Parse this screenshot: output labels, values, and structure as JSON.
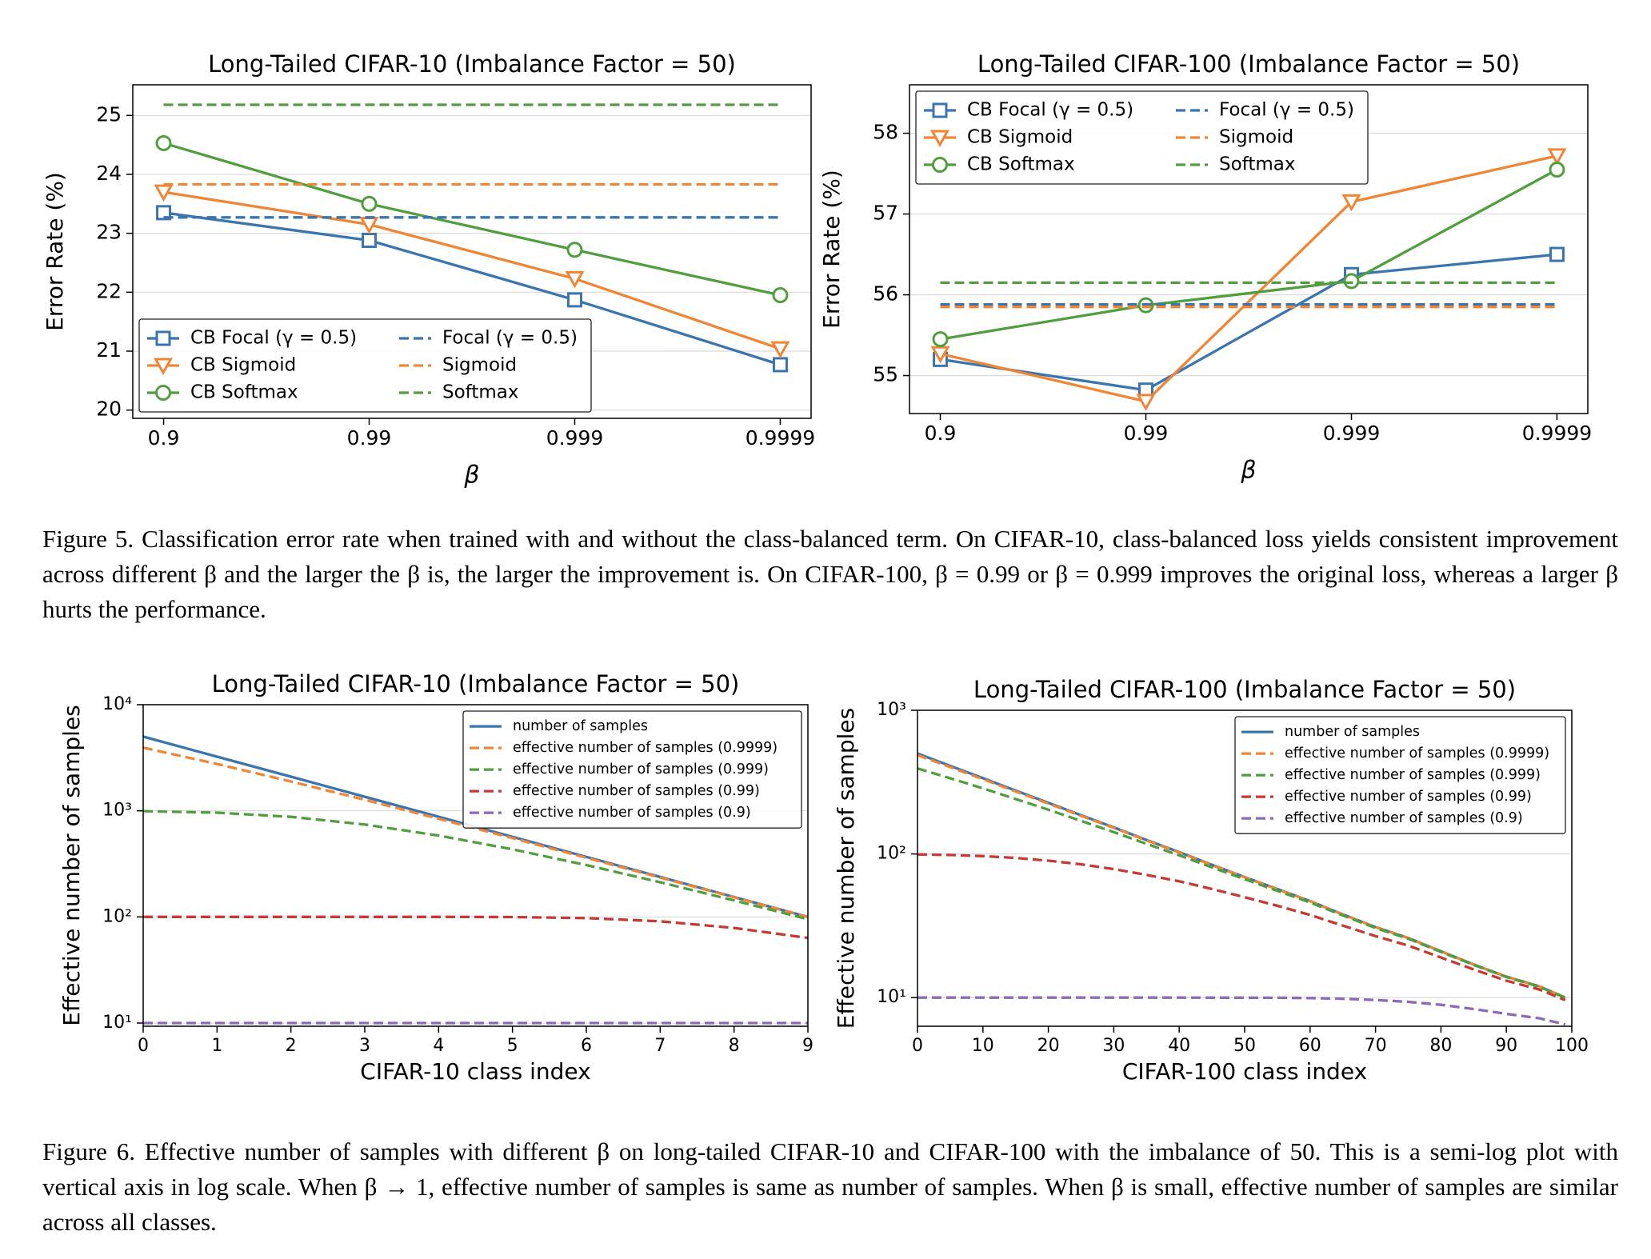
{
  "chart_data": [
    {
      "type": "line",
      "title": "Long-Tailed CIFAR-10 (Imbalance Factor = 50)",
      "xlabel": "β",
      "ylabel": "Error Rate (%)",
      "categories": [
        "0.9",
        "0.99",
        "0.999",
        "0.9999"
      ],
      "ylim": [
        19.86,
        25.52
      ],
      "yticks": [
        20,
        21,
        22,
        23,
        24,
        25
      ],
      "grid": true,
      "legend": "lower left",
      "series": [
        {
          "name": "CB Focal (γ = 0.5)",
          "color": "#3b75af",
          "marker": "square",
          "linestyle": "solid",
          "values": [
            23.35,
            22.88,
            21.87,
            20.77
          ]
        },
        {
          "name": "CB Sigmoid",
          "color": "#ef8636",
          "marker": "triangle-down",
          "linestyle": "solid",
          "values": [
            23.7,
            23.15,
            22.23,
            21.04
          ]
        },
        {
          "name": "CB Softmax",
          "color": "#519e3e",
          "marker": "circle",
          "linestyle": "solid",
          "values": [
            24.53,
            23.5,
            22.72,
            21.95
          ]
        },
        {
          "name": "Focal (γ = 0.5)",
          "color": "#3b75af",
          "linestyle": "dashed",
          "values": [
            23.27,
            23.27,
            23.27,
            23.27
          ]
        },
        {
          "name": "Sigmoid",
          "color": "#ef8636",
          "linestyle": "dashed",
          "values": [
            23.83,
            23.83,
            23.83,
            23.83
          ]
        },
        {
          "name": "Softmax",
          "color": "#519e3e",
          "linestyle": "dashed",
          "values": [
            25.18,
            25.18,
            25.18,
            25.18
          ]
        }
      ]
    },
    {
      "type": "line",
      "title": "Long-Tailed CIFAR-100 (Imbalance Factor = 50)",
      "xlabel": "β",
      "ylabel": "Error Rate (%)",
      "categories": [
        "0.9",
        "0.99",
        "0.999",
        "0.9999"
      ],
      "ylim": [
        54.53,
        58.6
      ],
      "yticks": [
        55,
        56,
        57,
        58
      ],
      "grid": true,
      "legend": "upper left",
      "series": [
        {
          "name": "CB Focal (γ = 0.5)",
          "color": "#3b75af",
          "marker": "square",
          "linestyle": "solid",
          "values": [
            55.2,
            54.82,
            56.25,
            56.5
          ]
        },
        {
          "name": "CB Sigmoid",
          "color": "#ef8636",
          "marker": "triangle-down",
          "linestyle": "solid",
          "values": [
            55.27,
            54.68,
            57.15,
            57.72
          ]
        },
        {
          "name": "CB Softmax",
          "color": "#519e3e",
          "marker": "circle",
          "linestyle": "solid",
          "values": [
            55.45,
            55.87,
            56.17,
            57.55
          ]
        },
        {
          "name": "Focal (γ = 0.5)",
          "color": "#3b75af",
          "linestyle": "dashed",
          "values": [
            55.88,
            55.88,
            55.88,
            55.88
          ]
        },
        {
          "name": "Sigmoid",
          "color": "#ef8636",
          "linestyle": "dashed",
          "values": [
            55.85,
            55.85,
            55.85,
            55.85
          ]
        },
        {
          "name": "Softmax",
          "color": "#519e3e",
          "linestyle": "dashed",
          "values": [
            56.15,
            56.15,
            56.15,
            56.15
          ]
        }
      ]
    },
    {
      "type": "line",
      "title": "Long-Tailed CIFAR-10 (Imbalance Factor = 50)",
      "xlabel": "CIFAR-10 class index",
      "ylabel": "Effective number of samples",
      "log_y": true,
      "x": [
        0,
        1,
        2,
        3,
        4,
        5,
        6,
        7,
        8,
        9
      ],
      "xlim": [
        0,
        9
      ],
      "xticks": [
        0,
        1,
        2,
        3,
        4,
        5,
        6,
        7,
        8,
        9
      ],
      "ylim": [
        9.33,
        10000
      ],
      "yticks": [
        {
          "value": 10,
          "label": "10¹"
        },
        {
          "value": 100,
          "label": "10²"
        },
        {
          "value": 1000,
          "label": "10³"
        },
        {
          "value": 10000,
          "label": "10⁴"
        }
      ],
      "grid": true,
      "legend": "upper right",
      "series": [
        {
          "name": "number of samples",
          "color": "#3b75af",
          "linestyle": "solid",
          "values": [
            5000,
            3237,
            2096,
            1357,
            879,
            569,
            368,
            238,
            154,
            100
          ]
        },
        {
          "name": "effective number of samples (0.9999)",
          "color": "#ef8636",
          "linestyle": "dashed",
          "values": [
            3935,
            2765,
            1891,
            1269,
            841,
            553,
            361,
            235,
            153,
            99.5
          ]
        },
        {
          "name": "effective number of samples (0.999)",
          "color": "#519e3e",
          "linestyle": "dashed",
          "values": [
            993,
            961,
            877,
            743,
            585,
            434,
            308,
            212,
            143,
            95.2
          ]
        },
        {
          "name": "effective number of samples (0.99)",
          "color": "#c53a32",
          "linestyle": "dashed",
          "values": [
            100,
            100,
            100,
            100,
            100,
            99.7,
            97.5,
            90.9,
            78.7,
            63.4
          ]
        },
        {
          "name": "effective number of samples (0.9)",
          "color": "#8d69b8",
          "linestyle": "dashed",
          "values": [
            10,
            10,
            10,
            10,
            10,
            10,
            10,
            10,
            10,
            10
          ]
        }
      ]
    },
    {
      "type": "line",
      "title": "Long-Tailed CIFAR-100 (Imbalance Factor = 50)",
      "xlabel": "CIFAR-100 class index",
      "ylabel": "Effective number of samples",
      "log_y": true,
      "x": [
        0,
        5,
        10,
        15,
        20,
        25,
        30,
        35,
        40,
        45,
        50,
        55,
        60,
        65,
        70,
        75,
        80,
        85,
        90,
        95,
        99
      ],
      "xlim": [
        0,
        100
      ],
      "xticks": [
        0,
        10,
        20,
        30,
        40,
        50,
        60,
        70,
        80,
        90,
        100
      ],
      "ylim": [
        6.32,
        1000
      ],
      "yticks": [
        {
          "value": 10,
          "label": "10¹"
        },
        {
          "value": 100,
          "label": "10²"
        },
        {
          "value": 1000,
          "label": "10³"
        }
      ],
      "grid": true,
      "legend": "upper right",
      "series": [
        {
          "name": "number of samples",
          "color": "#3b75af",
          "linestyle": "solid",
          "values": [
            500,
            410,
            337,
            276,
            227,
            186,
            153,
            125,
            103,
            84,
            69,
            57,
            47,
            38,
            31,
            26,
            21,
            17,
            14,
            12,
            10
          ]
        },
        {
          "name": "effective number of samples (0.9999)",
          "color": "#ef8636",
          "linestyle": "dashed",
          "values": [
            487.7,
            401.7,
            331.4,
            272.2,
            224.4,
            184.3,
            151.8,
            124.2,
            102.5,
            83.6,
            68.8,
            56.8,
            46.9,
            37.9,
            31,
            26,
            21,
            17,
            14,
            12,
            10
          ]
        },
        {
          "name": "effective number of samples (0.999)",
          "color": "#519e3e",
          "linestyle": "dashed",
          "values": [
            393.7,
            336.5,
            286.2,
            241.3,
            203.2,
            169.8,
            142,
            117.6,
            97.9,
            80.6,
            66.7,
            55.4,
            45.9,
            37.3,
            30.5,
            25.7,
            20.8,
            16.9,
            13.9,
            11.9,
            10
          ]
        },
        {
          "name": "effective number of samples (0.99)",
          "color": "#c53a32",
          "linestyle": "dashed",
          "values": [
            99.3,
            98.4,
            96.6,
            93.8,
            89.8,
            84.6,
            78.5,
            71.5,
            64.5,
            57,
            50,
            43.6,
            37.6,
            31.7,
            26.8,
            23,
            19,
            15.7,
            13.1,
            11.4,
            9.6
          ]
        },
        {
          "name": "effective number of samples (0.9)",
          "color": "#8d69b8",
          "linestyle": "dashed",
          "values": [
            10,
            10,
            10,
            10,
            10,
            10,
            10,
            10,
            10,
            9.99,
            9.99,
            9.97,
            9.93,
            9.82,
            9.62,
            9.35,
            8.91,
            8.33,
            7.71,
            7.18,
            6.51
          ]
        }
      ]
    }
  ],
  "captions": [
    "Figure 5. Classification error rate when trained with and without the class-balanced term. On CIFAR-10, class-balanced loss yields consistent improvement across different β and the larger the β is, the larger the improvement is. On CIFAR-100, β = 0.99 or β = 0.999 improves the original loss, whereas a larger β hurts the performance.",
    "Figure 6. Effective number of samples with different β on long-tailed CIFAR-10 and CIFAR-100 with the imbalance of 50. This is a semi-log plot with vertical axis in log scale. When β → 1, effective number of samples is same as number of samples. When β is small, effective number of samples are similar across all classes."
  ]
}
